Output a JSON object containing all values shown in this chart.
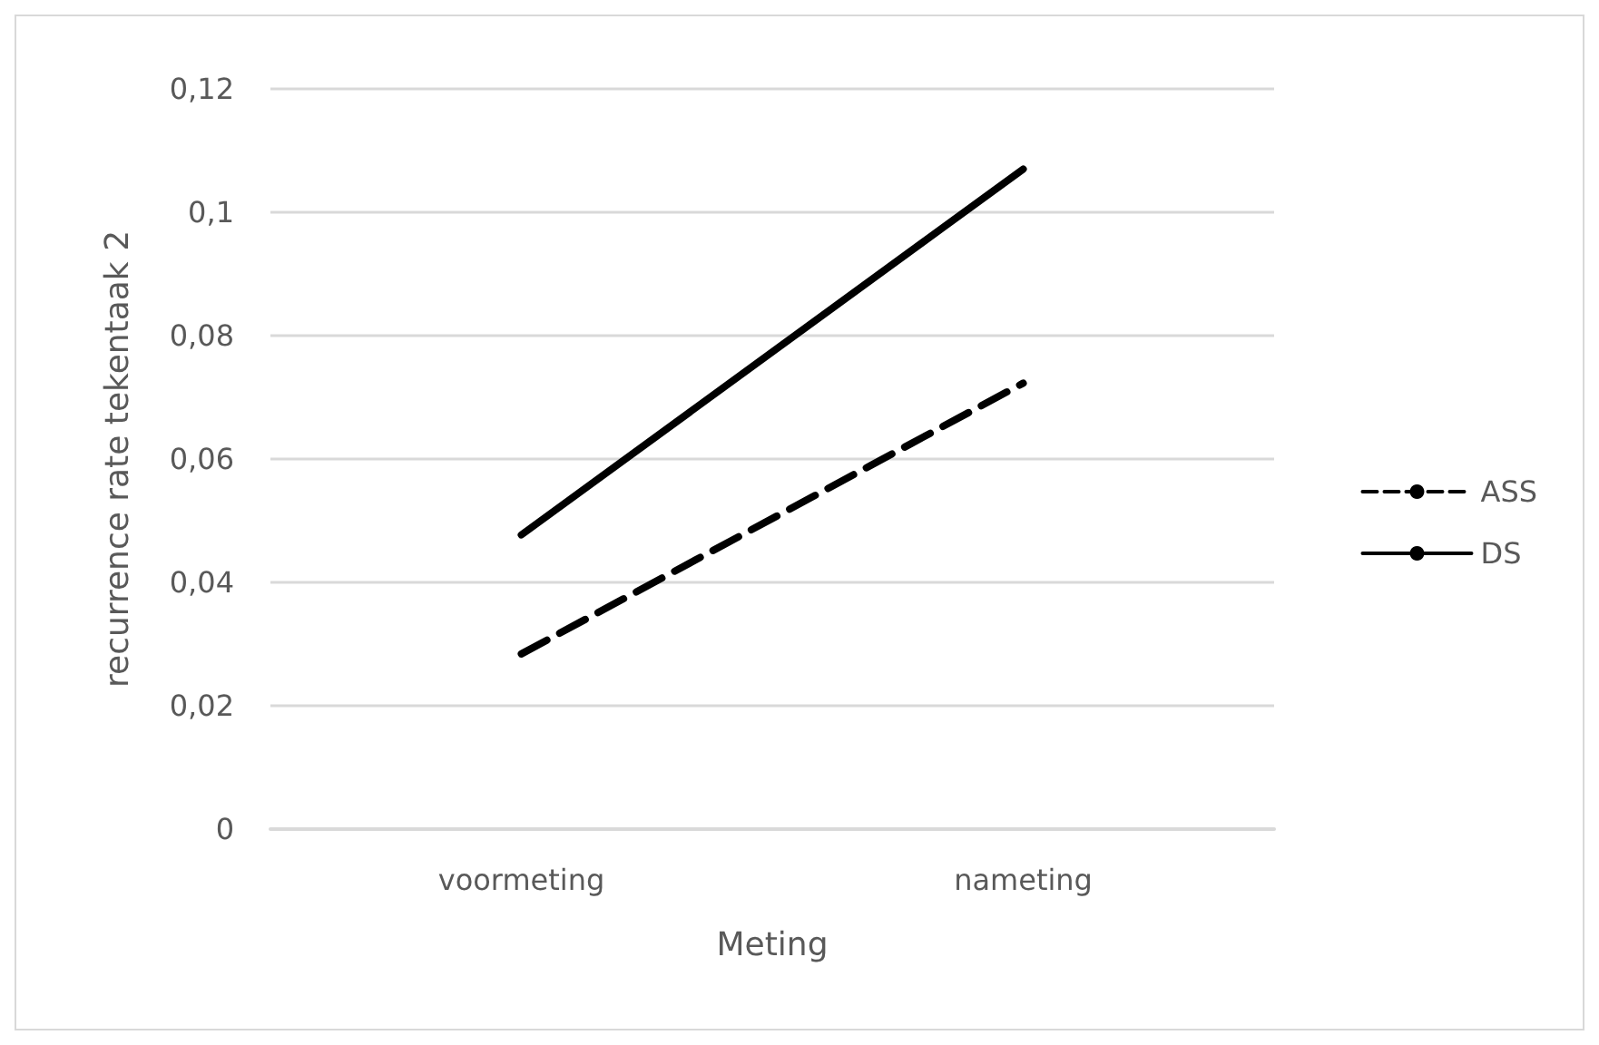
{
  "chart_data": {
    "type": "line",
    "xlabel": "Meting",
    "ylabel": "recurrence rate tekentaak 2",
    "categories": [
      "voormeting",
      "nameting"
    ],
    "series": [
      {
        "name": "ASS",
        "color": "#000000",
        "line_style": "dashed",
        "values": [
          0.0284,
          0.0723
        ]
      },
      {
        "name": "DS",
        "color": "#000000",
        "line_style": "solid",
        "values": [
          0.0477,
          0.107
        ]
      }
    ],
    "ylim": [
      0,
      0.12
    ],
    "yticks": [
      {
        "value": 0,
        "label": "0"
      },
      {
        "value": 0.02,
        "label": "0,02"
      },
      {
        "value": 0.04,
        "label": "0,04"
      },
      {
        "value": 0.06,
        "label": "0,06"
      },
      {
        "value": 0.08,
        "label": "0,08"
      },
      {
        "value": 0.1,
        "label": "0,1"
      },
      {
        "value": 0.12,
        "label": "0,12"
      }
    ],
    "grid": "y",
    "legend": "right",
    "marker": "none"
  }
}
